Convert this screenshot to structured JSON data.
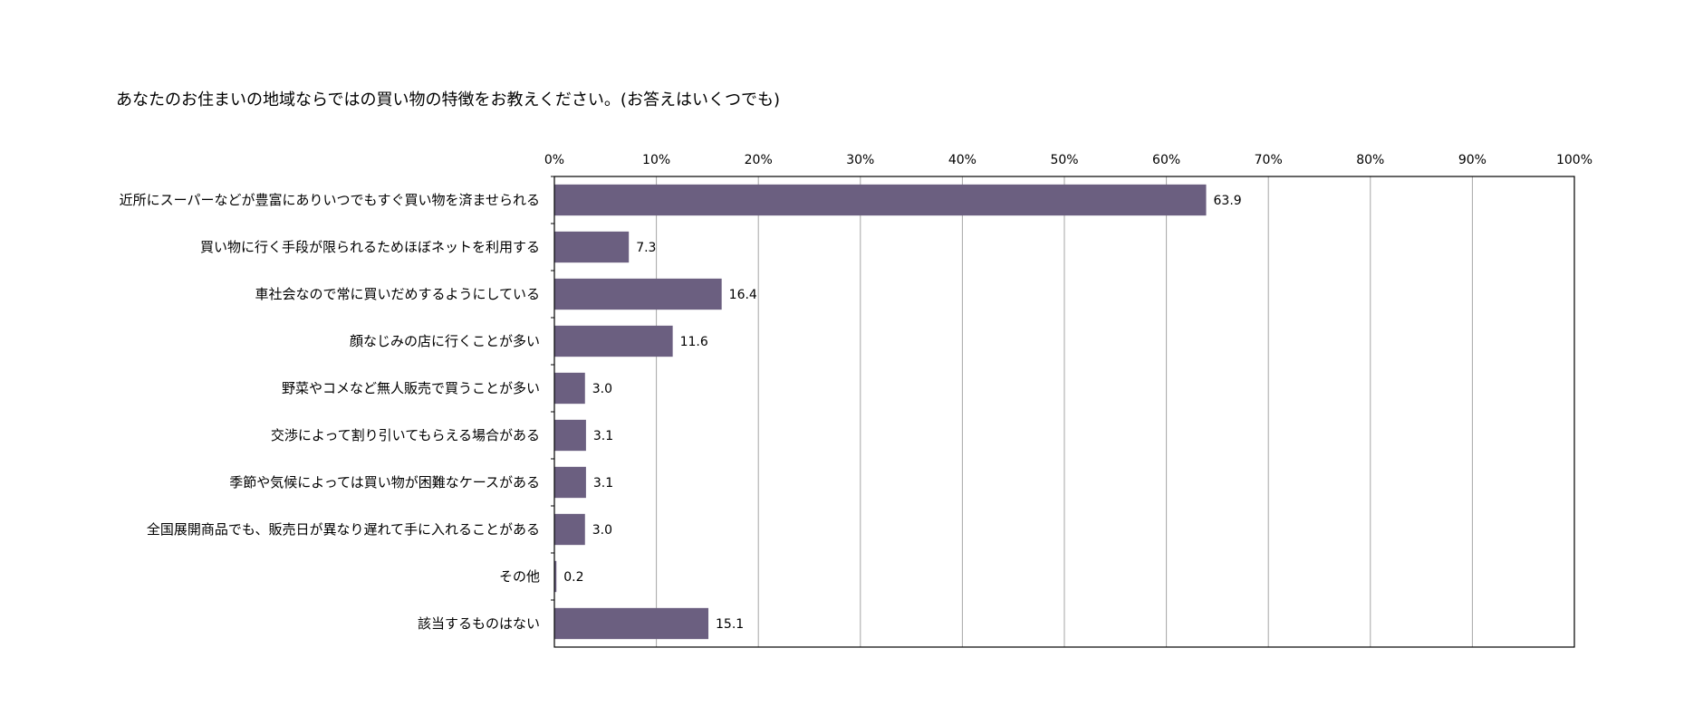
{
  "chart_data": {
    "type": "bar",
    "orientation": "horizontal",
    "title": "あなたのお住まいの地域ならではの買い物の特徴をお教えください。(お答えはいくつでも)",
    "xlim": [
      0,
      100
    ],
    "ticks": [
      0,
      10,
      20,
      30,
      40,
      50,
      60,
      70,
      80,
      90,
      100
    ],
    "tick_labels": [
      "0%",
      "10%",
      "20%",
      "30%",
      "40%",
      "50%",
      "60%",
      "70%",
      "80%",
      "90%",
      "100%"
    ],
    "x_axis_position": "top",
    "grid": true,
    "bar_color": "#6b5f80",
    "categories": [
      "近所にスーパーなどが豊富にありいつでもすぐ買い物を済ませられる",
      "買い物に行く手段が限られるためほぼネットを利用する",
      "車社会なので常に買いだめするようにしている",
      "顔なじみの店に行くことが多い",
      "野菜やコメなど無人販売で買うことが多い",
      "交渉によって割り引いてもらえる場合がある",
      "季節や気候によっては買い物が困難なケースがある",
      "全国展開商品でも、販売日が異なり遅れて手に入れることがある",
      "その他",
      "該当するものはない"
    ],
    "values": [
      63.9,
      7.3,
      16.4,
      11.6,
      3.0,
      3.1,
      3.1,
      3.0,
      0.2,
      15.1
    ],
    "value_labels": [
      "63.9",
      "7.3",
      "16.4",
      "11.6",
      "3.0",
      "3.1",
      "3.1",
      "3.0",
      "0.2",
      "15.1"
    ]
  }
}
